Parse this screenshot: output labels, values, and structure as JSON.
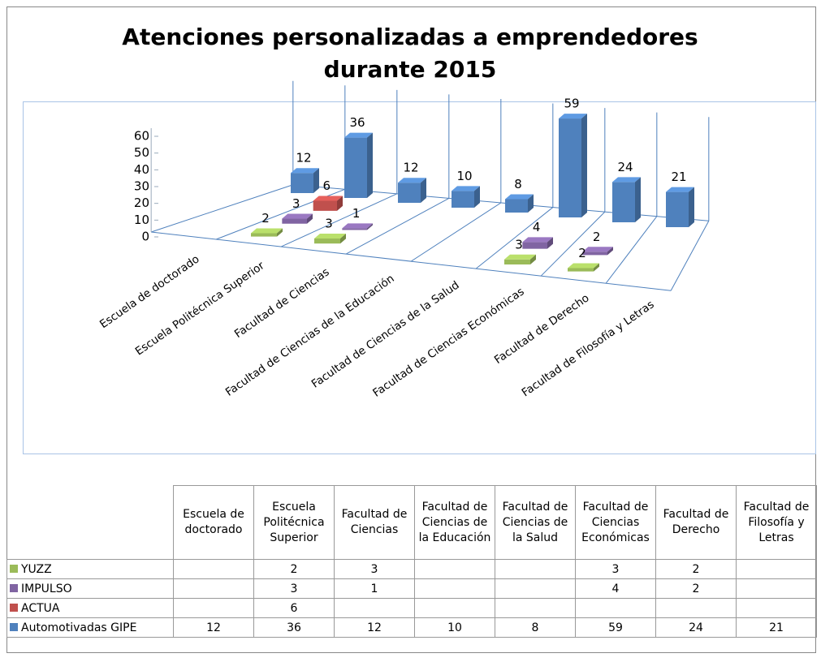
{
  "chart_data": {
    "type": "bar3d",
    "title": "Atenciones personalizadas a emprendedores durante 2015",
    "categories": [
      "Escuela de doctorado",
      "Escuela Politécnica Superior",
      "Facultad de Ciencias",
      "Facultad de Ciencias de la Educación",
      "Facultad de Ciencias de la Salud",
      "Facultad de Ciencias Económicas",
      "Facultad de Derecho",
      "Facultad de Filosofía y Letras"
    ],
    "series": [
      {
        "name": "YUZZ",
        "color": "#9bbb59",
        "values": [
          null,
          2,
          3,
          null,
          null,
          3,
          2,
          null
        ]
      },
      {
        "name": "IMPULSO",
        "color": "#8064a2",
        "values": [
          null,
          3,
          1,
          null,
          null,
          4,
          2,
          null
        ]
      },
      {
        "name": "ACTUA",
        "color": "#c0504d",
        "values": [
          null,
          6,
          null,
          null,
          null,
          null,
          null,
          null
        ]
      },
      {
        "name": "Automotivadas GIPE",
        "color": "#4f81bd",
        "values": [
          12,
          36,
          12,
          10,
          8,
          59,
          24,
          21
        ]
      }
    ],
    "ylim": [
      0,
      60
    ],
    "yticks": [
      0,
      10,
      20,
      30,
      40,
      50,
      60
    ],
    "data_table": true
  }
}
